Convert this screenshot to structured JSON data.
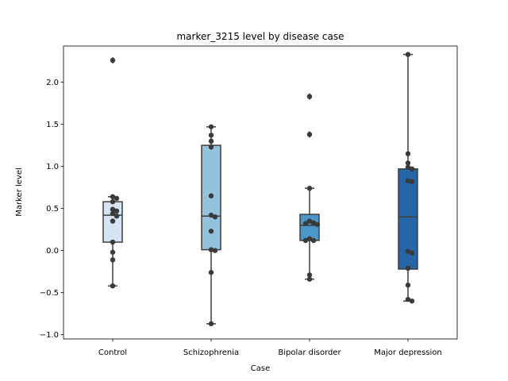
{
  "chart_data": {
    "type": "box",
    "title": "marker_3215 level by disease case",
    "xlabel": "Case",
    "ylabel": "Marker level",
    "ylim": [
      -1.05,
      2.43
    ],
    "yticks": [
      -1.0,
      -0.5,
      0.0,
      0.5,
      1.0,
      1.5,
      2.0
    ],
    "ytick_labels": [
      "−1.0",
      "−0.5",
      "0.0",
      "0.5",
      "1.0",
      "1.5",
      "2.0"
    ],
    "grid": false,
    "categories": [
      "Control",
      "Schizophrenia",
      "Bipolar disorder",
      "Major depression"
    ],
    "colors": [
      "#d4e4f2",
      "#94c1dc",
      "#4b97c9",
      "#2466a6"
    ],
    "boxes": [
      {
        "q1": 0.1,
        "median": 0.42,
        "q3": 0.58,
        "whisker_low": -0.42,
        "whisker_high": 0.64,
        "outliers": [
          2.26
        ]
      },
      {
        "q1": 0.01,
        "median": 0.41,
        "q3": 1.25,
        "whisker_low": -0.87,
        "whisker_high": 1.47,
        "outliers": []
      },
      {
        "q1": 0.12,
        "median": 0.3,
        "q3": 0.43,
        "whisker_low": -0.34,
        "whisker_high": 0.74,
        "outliers": [
          1.83,
          1.38
        ]
      },
      {
        "q1": -0.22,
        "median": 0.4,
        "q3": 0.97,
        "whisker_low": -0.6,
        "whisker_high": 2.33,
        "outliers": []
      }
    ],
    "points": [
      [
        0.64,
        0.62,
        0.58,
        0.47,
        0.44,
        0.49,
        0.41,
        0.35,
        0.1,
        -0.02,
        -0.11,
        -0.42,
        2.26
      ],
      [
        1.47,
        1.37,
        1.3,
        1.23,
        0.65,
        0.42,
        0.4,
        0.23,
        0.01,
        0.0,
        -0.26,
        -0.87
      ],
      [
        1.83,
        1.38,
        0.74,
        0.35,
        0.32,
        0.31,
        0.33,
        0.14,
        0.12,
        0.12,
        -0.29,
        -0.34
      ],
      [
        2.33,
        1.15,
        1.04,
        0.99,
        0.97,
        0.83,
        0.82,
        -0.01,
        -0.03,
        -0.21,
        -0.41,
        -0.58,
        -0.6
      ]
    ]
  }
}
